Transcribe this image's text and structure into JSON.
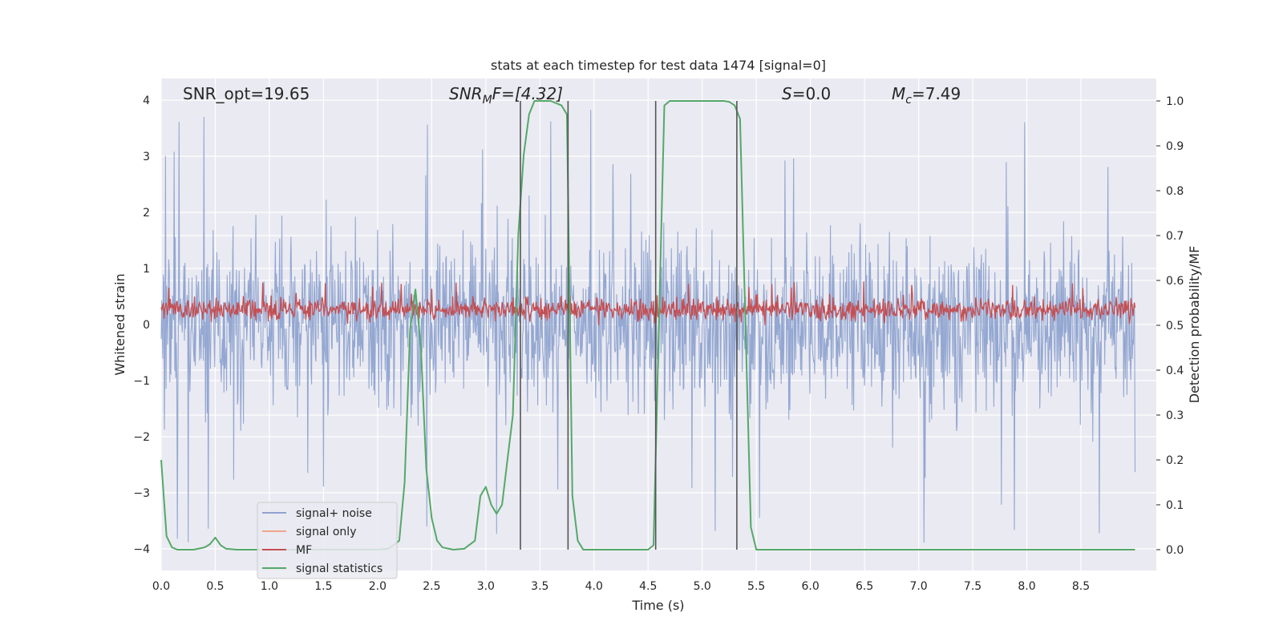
{
  "chart_data": {
    "type": "line",
    "title": "stats at each timestep for test data 1474 [signal=0]",
    "xlabel": "Time (s)",
    "ylabel_left": "Whitened strain",
    "ylabel_right": "Detection probability/MF",
    "xlim": [
      0.0,
      9.0
    ],
    "ylim_left": [
      -4.4,
      4.4
    ],
    "ylim_right": [
      -0.05,
      1.04
    ],
    "x_ticks": [
      "0.0",
      "0.5",
      "1.0",
      "1.5",
      "2.0",
      "2.5",
      "3.0",
      "3.5",
      "4.0",
      "4.5",
      "5.0",
      "5.5",
      "6.0",
      "6.5",
      "7.0",
      "7.5",
      "8.0",
      "8.5"
    ],
    "y_ticks_left": [
      "4",
      "3",
      "2",
      "1",
      "0",
      "−1",
      "−2",
      "−3",
      "−4"
    ],
    "y_ticks_right": [
      "1.0",
      "0.9",
      "0.8",
      "0.7",
      "0.6",
      "0.5",
      "0.4",
      "0.3",
      "0.2",
      "0.1",
      "0.0"
    ],
    "annotations": {
      "snr_opt": "SNR_opt=19.65",
      "snr_mf_main": "SNR",
      "snr_mf_sub": "M",
      "snr_mf_rest": "F=[4.32]",
      "s_main": "S",
      "s_rest": "=0.0",
      "mc_main": "M",
      "mc_sub": "c",
      "mc_rest": "=7.49"
    },
    "vertical_lines_s": [
      3.32,
      3.76,
      4.57,
      5.32
    ],
    "legend": [
      {
        "label": "signal+ noise",
        "color": "#8ea3cf"
      },
      {
        "label": "signal only",
        "color": "#f0a58a"
      },
      {
        "label": "MF",
        "color": "#c44e52"
      },
      {
        "label": "signal statistics",
        "color": "#55a868"
      }
    ],
    "series": [
      {
        "name": "signal statistics",
        "axis": "right",
        "x": [
          0.0,
          0.05,
          0.1,
          0.15,
          0.2,
          0.3,
          0.4,
          0.45,
          0.5,
          0.55,
          0.6,
          0.7,
          0.8,
          0.9,
          1.0,
          1.5,
          2.0,
          2.1,
          2.2,
          2.25,
          2.3,
          2.35,
          2.4,
          2.45,
          2.5,
          2.55,
          2.6,
          2.7,
          2.8,
          2.9,
          2.95,
          3.0,
          3.05,
          3.1,
          3.15,
          3.2,
          3.25,
          3.3,
          3.35,
          3.4,
          3.45,
          3.5,
          3.6,
          3.7,
          3.75,
          3.8,
          3.85,
          3.9,
          4.0,
          4.5,
          4.55,
          4.6,
          4.65,
          4.7,
          4.8,
          5.2,
          5.25,
          5.3,
          5.35,
          5.4,
          5.45,
          5.5,
          5.6,
          6.0,
          6.5,
          7.0,
          7.5,
          8.0,
          8.5,
          9.0
        ],
        "y": [
          0.2,
          0.03,
          0.005,
          0.0,
          0.0,
          0.0,
          0.005,
          0.012,
          0.027,
          0.01,
          0.002,
          0.0,
          0.0,
          0.0,
          0.0,
          0.0,
          0.0,
          0.002,
          0.02,
          0.15,
          0.49,
          0.58,
          0.45,
          0.18,
          0.07,
          0.02,
          0.005,
          0.0,
          0.002,
          0.02,
          0.12,
          0.14,
          0.1,
          0.08,
          0.1,
          0.2,
          0.3,
          0.7,
          0.88,
          0.97,
          1.0,
          1.0,
          1.0,
          0.99,
          0.97,
          0.12,
          0.02,
          0.0,
          0.0,
          0.0,
          0.01,
          0.5,
          0.99,
          1.0,
          1.0,
          1.0,
          0.998,
          0.99,
          0.96,
          0.5,
          0.05,
          0.0,
          0.0,
          0.0,
          0.0,
          0.0,
          0.0,
          0.0,
          0.0,
          0.0
        ]
      },
      {
        "name": "signal+ noise",
        "axis": "left",
        "generator": "dense noise trace across 0–9 s, envelope roughly ±2, peaks to ±4"
      },
      {
        "name": "MF",
        "axis": "right",
        "generator": "dense noise trace across 0–9 s between ~0.50 and ~0.58"
      }
    ]
  }
}
